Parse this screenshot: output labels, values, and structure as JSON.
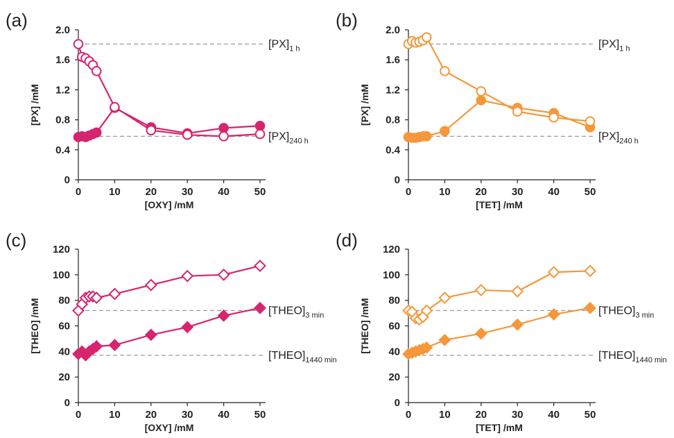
{
  "chart_data": [
    {
      "panel": "(a)",
      "type": "line",
      "marker": "circle",
      "color": "#d6246e",
      "xlabel": "[OXY] /mM",
      "ylabel": "[PX] /mM",
      "xlim": [
        0,
        50
      ],
      "ylim": [
        0,
        2.0
      ],
      "xticks": [
        "0",
        "10",
        "20",
        "30",
        "40",
        "50"
      ],
      "yticks": [
        "0",
        "0.4",
        "0.8",
        "1.2",
        "1.6",
        "2.0"
      ],
      "x": [
        0,
        1,
        2,
        3,
        4,
        5,
        10,
        20,
        30,
        40,
        50
      ],
      "series": [
        {
          "fill": "filled",
          "values": [
            0.57,
            0.58,
            0.57,
            0.59,
            0.61,
            0.63,
            0.96,
            0.7,
            0.62,
            0.69,
            0.72
          ]
        },
        {
          "fill": "open",
          "values": [
            1.81,
            1.64,
            1.62,
            1.58,
            1.53,
            1.45,
            0.97,
            0.66,
            0.6,
            0.58,
            0.61
          ]
        }
      ],
      "reference_lines": [
        {
          "y": 1.81,
          "label": "[PX]",
          "sub": "1 h"
        },
        {
          "y": 0.58,
          "label": "[PX]",
          "sub": "240 h"
        }
      ]
    },
    {
      "panel": "(b)",
      "type": "line",
      "marker": "circle",
      "color": "#f5973a",
      "xlabel": "[TET] /mM",
      "ylabel": "[PX] /mM",
      "xlim": [
        0,
        50
      ],
      "ylim": [
        0,
        2.0
      ],
      "xticks": [
        "0",
        "10",
        "20",
        "30",
        "40",
        "50"
      ],
      "yticks": [
        "0",
        "0.4",
        "0.8",
        "1.2",
        "1.6",
        "2.0"
      ],
      "x": [
        0,
        1,
        2,
        3,
        4,
        5,
        10,
        20,
        30,
        40,
        50
      ],
      "series": [
        {
          "fill": "filled",
          "values": [
            0.57,
            0.56,
            0.56,
            0.57,
            0.58,
            0.58,
            0.65,
            1.06,
            0.96,
            0.89,
            0.7
          ]
        },
        {
          "fill": "open",
          "values": [
            1.81,
            1.85,
            1.83,
            1.84,
            1.86,
            1.9,
            1.45,
            1.18,
            0.91,
            0.83,
            0.78
          ]
        }
      ],
      "reference_lines": [
        {
          "y": 1.81,
          "label": "[PX]",
          "sub": "1 h"
        },
        {
          "y": 0.58,
          "label": "[PX]",
          "sub": "240 h"
        }
      ]
    },
    {
      "panel": "(c)",
      "type": "line",
      "marker": "diamond",
      "color": "#d6246e",
      "xlabel": "[OXY] /mM",
      "ylabel": "[THEO] /mM",
      "xlim": [
        0,
        50
      ],
      "ylim": [
        0,
        120
      ],
      "xticks": [
        "0",
        "10",
        "20",
        "30",
        "40",
        "50"
      ],
      "yticks": [
        "0",
        "20",
        "40",
        "60",
        "80",
        "100",
        "120"
      ],
      "x": [
        0,
        1,
        2,
        3,
        4,
        5,
        10,
        20,
        30,
        40,
        50
      ],
      "series": [
        {
          "fill": "filled",
          "values": [
            38,
            40,
            37,
            40,
            42,
            44,
            45,
            53,
            59,
            68,
            74
          ]
        },
        {
          "fill": "open",
          "values": [
            72,
            77,
            82,
            83,
            83,
            82,
            85,
            92,
            99,
            100,
            107
          ]
        }
      ],
      "reference_lines": [
        {
          "y": 72,
          "label": "[THEO]",
          "sub": "3 min"
        },
        {
          "y": 37,
          "label": "[THEO]",
          "sub": "1440 min"
        }
      ]
    },
    {
      "panel": "(d)",
      "type": "line",
      "marker": "diamond",
      "color": "#f5973a",
      "xlabel": "[TET] /mM",
      "ylabel": "[THEO] /mM",
      "xlim": [
        0,
        50
      ],
      "ylim": [
        0,
        120
      ],
      "xticks": [
        "0",
        "10",
        "20",
        "30",
        "40",
        "50"
      ],
      "yticks": [
        "0",
        "20",
        "40",
        "60",
        "80",
        "100",
        "120"
      ],
      "x": [
        0,
        1,
        2,
        3,
        4,
        5,
        10,
        20,
        30,
        40,
        50
      ],
      "series": [
        {
          "fill": "filled",
          "values": [
            38,
            39,
            40,
            41,
            42,
            43,
            49,
            54,
            61,
            69,
            74
          ]
        },
        {
          "fill": "open",
          "values": [
            72,
            71,
            66,
            65,
            67,
            72,
            82,
            88,
            87,
            102,
            103
          ]
        }
      ],
      "reference_lines": [
        {
          "y": 72,
          "label": "[THEO]",
          "sub": "3 min"
        },
        {
          "y": 37,
          "label": "[THEO]",
          "sub": "1440 min"
        }
      ]
    }
  ]
}
